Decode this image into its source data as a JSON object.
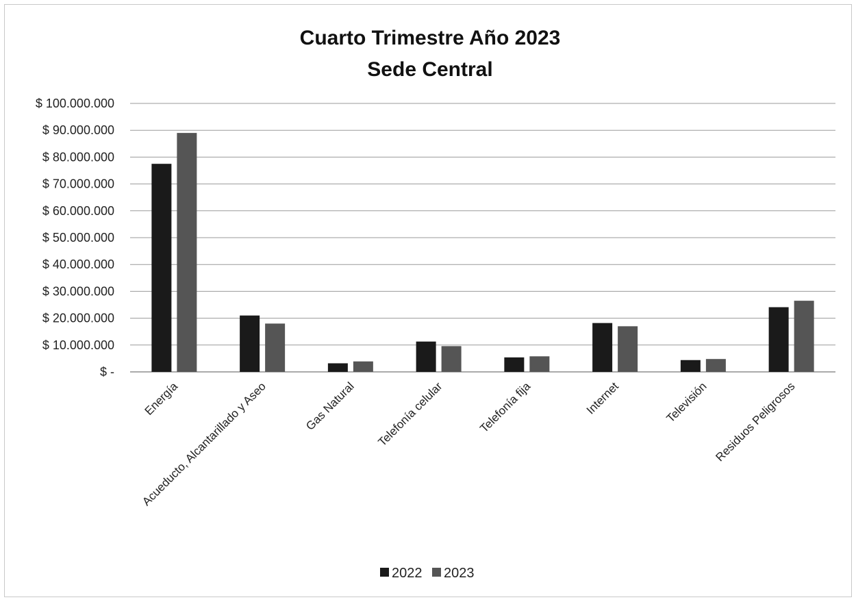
{
  "chart_data": {
    "type": "bar",
    "title": "Cuarto Trimestre Año 2023",
    "subtitle": "Sede Central",
    "categories": [
      "Energía",
      "Acueducto, Alcantarillado y Aseo",
      "Gas Natural",
      "Telefonía celular",
      "Telefonía fija",
      "Internet",
      "Televisión",
      "Residuos Peligrosos"
    ],
    "series": [
      {
        "name": "2022",
        "color": "#1a1a1a",
        "values": [
          77500000,
          21000000,
          3200000,
          11300000,
          5400000,
          18200000,
          4400000,
          24100000
        ]
      },
      {
        "name": "2023",
        "color": "#555555",
        "values": [
          89000000,
          18000000,
          3900000,
          9600000,
          5800000,
          17000000,
          4800000,
          26500000
        ]
      }
    ],
    "y_ticks": [
      "$ -",
      "$ 10.000.000",
      "$ 20.000.000",
      "$ 30.000.000",
      "$ 40.000.000",
      "$ 50.000.000",
      "$ 60.000.000",
      "$ 70.000.000",
      "$ 80.000.000",
      "$ 90.000.000",
      "$ 100.000.000"
    ],
    "ylim": [
      0,
      100000000
    ],
    "y_step": 10000000,
    "grid": true,
    "legend_position": "bottom"
  }
}
